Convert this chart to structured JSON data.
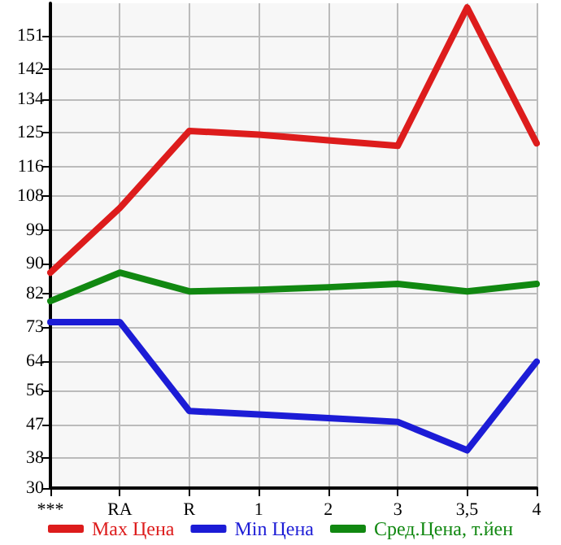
{
  "chart_data": {
    "type": "line",
    "categories": [
      "***",
      "RA",
      "R",
      "1",
      "2",
      "3",
      "3,5",
      "4"
    ],
    "series": [
      {
        "name": "Max Цена",
        "color": "#dd1c1c",
        "values": [
          87.6,
          104.9,
          125.5,
          124.5,
          123.0,
          121.5,
          158.5,
          122.2
        ]
      },
      {
        "name": "Min Цена",
        "color": "#1c1cd6",
        "values": [
          74.4,
          74.4,
          50.6,
          49.7,
          48.7,
          47.7,
          40.1,
          63.8
        ]
      },
      {
        "name": "Сред.Цена, т.йен",
        "color": "#118811",
        "values": [
          80.0,
          87.6,
          82.6,
          83.0,
          83.7,
          84.6,
          82.6,
          84.6
        ]
      }
    ],
    "ylim": [
      30,
      159.64
    ],
    "yticks": [
      30,
      38,
      47,
      56,
      64,
      73,
      82,
      90,
      99,
      108,
      116,
      125,
      134,
      142,
      151
    ],
    "grid": true,
    "legend": "bottom",
    "marker": "none",
    "line_style": "solid"
  }
}
